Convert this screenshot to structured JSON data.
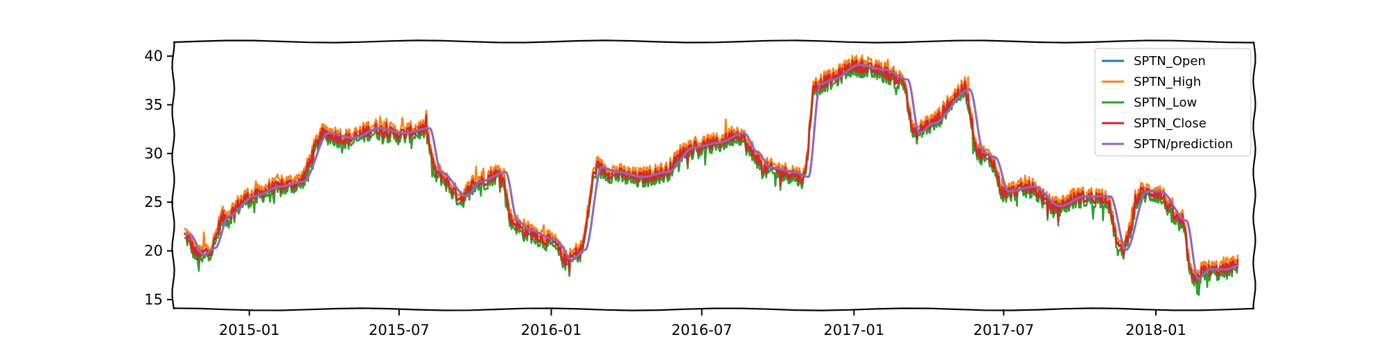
{
  "chart_data": {
    "type": "line",
    "title": "",
    "xlabel": "",
    "ylabel": "",
    "style": "xkcd-sketch",
    "xlim": [
      "2014-10-01",
      "2018-04-30"
    ],
    "ylim": [
      14,
      41.5
    ],
    "y_ticks": [
      15,
      20,
      25,
      30,
      35,
      40
    ],
    "x_ticks": [
      "2015-01",
      "2015-07",
      "2016-01",
      "2016-07",
      "2017-01",
      "2017-07",
      "2018-01"
    ],
    "grid": false,
    "legend_position": "top-right",
    "anchors": [
      [
        "2014-10-15",
        21.6
      ],
      [
        "2014-11-01",
        19.5
      ],
      [
        "2014-11-15",
        20.2
      ],
      [
        "2014-12-01",
        23.5
      ],
      [
        "2015-01-01",
        25.5
      ],
      [
        "2015-02-01",
        26.5
      ],
      [
        "2015-03-01",
        27.0
      ],
      [
        "2015-04-01",
        32.0
      ],
      [
        "2015-05-01",
        31.5
      ],
      [
        "2015-06-01",
        32.5
      ],
      [
        "2015-07-01",
        32.0
      ],
      [
        "2015-08-01",
        32.5
      ],
      [
        "2015-08-15",
        28.0
      ],
      [
        "2015-09-15",
        25.5
      ],
      [
        "2015-10-01",
        27.0
      ],
      [
        "2015-11-01",
        28.0
      ],
      [
        "2015-11-15",
        23.0
      ],
      [
        "2015-12-01",
        22.0
      ],
      [
        "2016-01-01",
        21.0
      ],
      [
        "2016-01-20",
        19.0
      ],
      [
        "2016-02-05",
        20.0
      ],
      [
        "2016-02-25",
        28.5
      ],
      [
        "2016-03-15",
        28.0
      ],
      [
        "2016-04-15",
        27.5
      ],
      [
        "2016-05-15",
        28.0
      ],
      [
        "2016-06-15",
        30.5
      ],
      [
        "2016-07-15",
        31.0
      ],
      [
        "2016-08-15",
        32.0
      ],
      [
        "2016-09-01",
        30.0
      ],
      [
        "2016-09-15",
        28.5
      ],
      [
        "2016-10-15",
        28.0
      ],
      [
        "2016-11-01",
        27.5
      ],
      [
        "2016-11-15",
        37.0
      ],
      [
        "2016-12-01",
        37.5
      ],
      [
        "2017-01-01",
        39.0
      ],
      [
        "2017-02-01",
        38.5
      ],
      [
        "2017-03-01",
        37.5
      ],
      [
        "2017-03-15",
        32.0
      ],
      [
        "2017-04-01",
        33.0
      ],
      [
        "2017-05-15",
        36.5
      ],
      [
        "2017-06-01",
        30.0
      ],
      [
        "2017-06-15",
        29.5
      ],
      [
        "2017-07-01",
        26.0
      ],
      [
        "2017-08-01",
        26.5
      ],
      [
        "2017-09-01",
        24.5
      ],
      [
        "2017-10-01",
        25.5
      ],
      [
        "2017-11-01",
        25.5
      ],
      [
        "2017-11-20",
        20.0
      ],
      [
        "2017-12-15",
        26.0
      ],
      [
        "2018-01-01",
        26.0
      ],
      [
        "2018-02-01",
        23.0
      ],
      [
        "2018-02-15",
        17.0
      ],
      [
        "2018-03-01",
        18.0
      ],
      [
        "2018-03-20",
        18.0
      ],
      [
        "2018-04-10",
        18.5
      ]
    ],
    "series": [
      {
        "name": "SPTN_Open",
        "color": "#1f77b4",
        "offset": 0.0,
        "lag_days": 0
      },
      {
        "name": "SPTN_High",
        "color": "#ff7f0e",
        "offset": 0.45,
        "lag_days": 0
      },
      {
        "name": "SPTN_Low",
        "color": "#2ca02c",
        "offset": -0.45,
        "lag_days": 0
      },
      {
        "name": "SPTN_Close",
        "color": "#d62728",
        "offset": 0.0,
        "lag_days": 0
      },
      {
        "name": "SPTN/prediction",
        "color": "#9467bd",
        "offset": 0.1,
        "lag_days": 6
      }
    ]
  }
}
